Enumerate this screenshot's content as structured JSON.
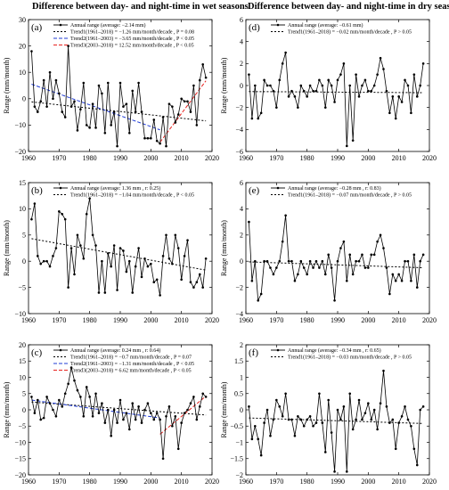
{
  "headers": {
    "left": "Difference between day- and night-time in wet seasons",
    "right": "Difference between day- and night-time in dry seasons"
  },
  "colors": {
    "series": "#000000",
    "trend1": "#000000",
    "trend2": "#1f3bd6",
    "trend3": "#e8231f"
  },
  "chart_data": [
    {
      "id": "a",
      "type": "line",
      "panel_label": "(a)",
      "ylabel": "Range (mm/month)",
      "xlim": [
        1960,
        2020
      ],
      "ylim": [
        -20,
        30
      ],
      "xticks": [
        1960,
        1970,
        1980,
        1990,
        2000,
        2010,
        2020
      ],
      "yticks": [
        -20,
        -10,
        0,
        10,
        20,
        30
      ],
      "legend": [
        {
          "text": "Annual range (average: −2.14 mm)",
          "style": "series"
        },
        {
          "text": "Trend1(1961–2018) = −1.26 mm/month/decade , P = 0.08",
          "style": "trend1"
        },
        {
          "text": "Trend2(1961–2003) = −3.65 mm/month/decade , P < 0.05",
          "style": "trend2"
        },
        {
          "text": "Trend3(2003–2018) = 12.52 mm/month/decade , P < 0.05",
          "style": "trend3"
        }
      ],
      "years": [
        1961,
        1962,
        1963,
        1964,
        1965,
        1966,
        1967,
        1968,
        1969,
        1970,
        1971,
        1972,
        1973,
        1974,
        1975,
        1976,
        1977,
        1978,
        1979,
        1980,
        1981,
        1982,
        1983,
        1984,
        1985,
        1986,
        1987,
        1988,
        1989,
        1990,
        1991,
        1992,
        1993,
        1994,
        1995,
        1996,
        1997,
        1998,
        1999,
        2000,
        2001,
        2002,
        2003,
        2004,
        2005,
        2006,
        2007,
        2008,
        2009,
        2010,
        2011,
        2012,
        2013,
        2014,
        2015,
        2016,
        2017,
        2018
      ],
      "values": [
        18,
        -3,
        -5,
        -1,
        7,
        -3,
        10,
        0,
        7,
        2,
        -5,
        -7,
        20,
        -3,
        -1,
        -12,
        -4,
        6,
        -10,
        -11,
        -2,
        -11,
        5,
        2,
        -13,
        6,
        -10,
        -5,
        -18,
        6,
        -3,
        -2,
        -13,
        3,
        -5,
        6,
        -5,
        -15,
        -15,
        -15,
        -8,
        -16,
        -17,
        -7,
        -18,
        -2,
        -3,
        -9,
        -6,
        0,
        -1,
        -1,
        -5,
        5,
        -10,
        7,
        13,
        8
      ],
      "trends": [
        {
          "style": "trend1",
          "x": [
            1961,
            2018
          ],
          "y": [
            -1.2,
            -8.4
          ]
        },
        {
          "style": "trend2",
          "x": [
            1961,
            2003
          ],
          "y": [
            5.5,
            -11.8
          ]
        },
        {
          "style": "trend3",
          "x": [
            2003,
            2018
          ],
          "y": [
            -16.5,
            6.8
          ]
        }
      ]
    },
    {
      "id": "b",
      "type": "line",
      "panel_label": "(b)",
      "ylabel": "Range (mm/month)",
      "xlim": [
        1960,
        2020
      ],
      "ylim": [
        -10,
        15
      ],
      "xticks": [
        1960,
        1970,
        1980,
        1990,
        2000,
        2010,
        2020
      ],
      "yticks": [
        -10,
        -5,
        0,
        5,
        10,
        15
      ],
      "legend": [
        {
          "text": "Annual range (average: 1.36 mm , r: 0.25)",
          "style": "series"
        },
        {
          "text": "Trend1(1961–2018) = −1.04 mm/month/decade , P < 0.05",
          "style": "trend1"
        }
      ],
      "years": [
        1961,
        1962,
        1963,
        1964,
        1965,
        1966,
        1967,
        1968,
        1969,
        1970,
        1971,
        1972,
        1973,
        1974,
        1975,
        1976,
        1977,
        1978,
        1979,
        1980,
        1981,
        1982,
        1983,
        1984,
        1985,
        1986,
        1987,
        1988,
        1989,
        1990,
        1991,
        1992,
        1993,
        1994,
        1995,
        1996,
        1997,
        1998,
        1999,
        2000,
        2001,
        2002,
        2003,
        2004,
        2005,
        2006,
        2007,
        2008,
        2009,
        2010,
        2011,
        2012,
        2013,
        2014,
        2015,
        2016,
        2017,
        2018
      ],
      "values": [
        8,
        11,
        1,
        -0.5,
        0,
        0,
        -1,
        1,
        2.5,
        9.5,
        9,
        8,
        -5,
        2.5,
        -2.5,
        5,
        3,
        0.5,
        9,
        12,
        5,
        3,
        -6,
        0,
        -6,
        1.5,
        -1,
        3,
        -5.5,
        2.5,
        2,
        -2,
        0,
        -6,
        -1,
        2.5,
        -3,
        0.5,
        -1,
        -0.5,
        -4,
        -3.5,
        -6.5,
        1,
        5,
        0.5,
        -0.5,
        5,
        2.5,
        -3.5,
        1,
        4,
        -4,
        -5,
        -4,
        -2.5,
        -5,
        0.5
      ],
      "trends": [
        {
          "style": "trend1",
          "x": [
            1961,
            2018
          ],
          "y": [
            4.3,
            -1.7
          ]
        }
      ]
    },
    {
      "id": "c",
      "type": "line",
      "panel_label": "(c)",
      "ylabel": "Range (mm/month)",
      "xlim": [
        1960,
        2020
      ],
      "ylim": [
        -20,
        20
      ],
      "xticks": [
        1960,
        1970,
        1980,
        1990,
        2000,
        2010,
        2020
      ],
      "yticks": [
        -20,
        -15,
        -10,
        -5,
        0,
        5,
        10,
        15,
        20
      ],
      "legend": [
        {
          "text": "Annual range (average: 0.24 mm , r: 0.64)",
          "style": "series"
        },
        {
          "text": "Trend1(1961–2018) = −0.7 mm/month/decade , P = 0.07",
          "style": "trend1"
        },
        {
          "text": "Trend2(1961–2003) = −1.31 mm/month/decade , P < 0.05",
          "style": "trend2"
        },
        {
          "text": "Trend3(2003–2018) = 6.62 mm/month/decade , P < 0.05",
          "style": "trend3"
        }
      ],
      "years": [
        1961,
        1962,
        1963,
        1964,
        1965,
        1966,
        1967,
        1968,
        1969,
        1970,
        1971,
        1972,
        1973,
        1974,
        1975,
        1976,
        1977,
        1978,
        1979,
        1980,
        1981,
        1982,
        1983,
        1984,
        1985,
        1986,
        1987,
        1988,
        1989,
        1990,
        1991,
        1992,
        1993,
        1994,
        1995,
        1996,
        1997,
        1998,
        1999,
        2000,
        2001,
        2002,
        2003,
        2004,
        2005,
        2006,
        2007,
        2008,
        2009,
        2010,
        2011,
        2012,
        2013,
        2014,
        2015,
        2016,
        2017,
        2018
      ],
      "values": [
        4,
        -1,
        3,
        -3,
        -2.5,
        4,
        2,
        0,
        -2,
        3,
        1,
        5,
        8,
        13,
        9,
        6,
        4,
        -2,
        7,
        4,
        -2,
        5,
        -1,
        2,
        -4,
        0,
        -8,
        0,
        -4,
        3,
        -3,
        -1,
        -6,
        2,
        -3,
        1,
        -4,
        0,
        2,
        -1,
        -3,
        -1,
        -3,
        -15,
        -2,
        1,
        -5,
        -2,
        -12,
        -4,
        -1,
        0,
        2,
        4,
        -3,
        1,
        5,
        4
      ],
      "trends": [
        {
          "style": "trend1",
          "x": [
            1961,
            2018
          ],
          "y": [
            2.4,
            -1.6
          ]
        },
        {
          "style": "trend2",
          "x": [
            1961,
            2003
          ],
          "y": [
            3.0,
            -2.5
          ]
        },
        {
          "style": "trend3",
          "x": [
            2003,
            2018
          ],
          "y": [
            -7.5,
            4.2
          ]
        }
      ]
    },
    {
      "id": "d",
      "type": "line",
      "panel_label": "(d)",
      "ylabel": "Range (mm/month)",
      "xlim": [
        1960,
        2020
      ],
      "ylim": [
        -6,
        6
      ],
      "xticks": [
        1960,
        1970,
        1980,
        1990,
        2000,
        2010,
        2020
      ],
      "yticks": [
        -6,
        -4,
        -2,
        0,
        2,
        4,
        6
      ],
      "legend": [
        {
          "text": "Annual range (average: −0.61 mm)",
          "style": "series"
        },
        {
          "text": "Trend1(1961–2018) = −0.02 mm/month/decade , P > 0.05",
          "style": "trend1"
        }
      ],
      "years": [
        1961,
        1962,
        1963,
        1964,
        1965,
        1966,
        1967,
        1968,
        1969,
        1970,
        1971,
        1972,
        1973,
        1974,
        1975,
        1976,
        1977,
        1978,
        1979,
        1980,
        1981,
        1982,
        1983,
        1984,
        1985,
        1986,
        1987,
        1988,
        1989,
        1990,
        1991,
        1992,
        1993,
        1994,
        1995,
        1996,
        1997,
        1998,
        1999,
        2000,
        2001,
        2002,
        2003,
        2004,
        2005,
        2006,
        2007,
        2008,
        2009,
        2010,
        2011,
        2012,
        2013,
        2014,
        2015,
        2016,
        2017,
        2018
      ],
      "values": [
        1,
        -3,
        0,
        -3,
        -2.5,
        0.5,
        0,
        0,
        -0.5,
        -2,
        0.5,
        2,
        3,
        -1,
        -0.5,
        -1,
        -2,
        0,
        -0.5,
        -1,
        0,
        -0.5,
        -0.5,
        0.5,
        0,
        -2,
        0.5,
        0,
        -1.5,
        0.5,
        1,
        2,
        -5.5,
        0,
        -5,
        1,
        -1,
        0,
        0.5,
        -0.5,
        -0.5,
        0,
        1,
        2.5,
        1.5,
        -0.5,
        -2.5,
        -1,
        -3,
        -1,
        -1.5,
        0.5,
        0,
        -2.5,
        1,
        -1,
        0,
        2
      ],
      "trends": [
        {
          "style": "trend1",
          "x": [
            1961,
            2018
          ],
          "y": [
            -0.55,
            -0.65
          ]
        }
      ]
    },
    {
      "id": "e",
      "type": "line",
      "panel_label": "(e)",
      "ylabel": "Range (mm/month)",
      "xlim": [
        1960,
        2020
      ],
      "ylim": [
        -4,
        6
      ],
      "xticks": [
        1960,
        1970,
        1980,
        1990,
        2000,
        2010,
        2020
      ],
      "yticks": [
        -4,
        -2,
        0,
        2,
        4,
        6
      ],
      "legend": [
        {
          "text": "Annual range (average: −0.28 mm , r: 0.83)",
          "style": "series"
        },
        {
          "text": "Trend1(1961–2018) = −0.07 mm/month/decade , P > 0.05",
          "style": "trend1"
        }
      ],
      "years": [
        1961,
        1962,
        1963,
        1964,
        1965,
        1966,
        1967,
        1968,
        1969,
        1970,
        1971,
        1972,
        1973,
        1974,
        1975,
        1976,
        1977,
        1978,
        1979,
        1980,
        1981,
        1982,
        1983,
        1984,
        1985,
        1986,
        1987,
        1988,
        1989,
        1990,
        1991,
        1992,
        1993,
        1994,
        1995,
        1996,
        1997,
        1998,
        1999,
        2000,
        2001,
        2002,
        2003,
        2004,
        2005,
        2006,
        2007,
        2008,
        2009,
        2010,
        2011,
        2012,
        2013,
        2014,
        2015,
        2016,
        2017,
        2018
      ],
      "values": [
        3,
        -1.5,
        0,
        -3,
        -2.5,
        0,
        0,
        -0.5,
        -1,
        -0.5,
        0,
        1.5,
        3.5,
        0,
        0,
        -1.5,
        -1,
        0,
        -0.5,
        -1,
        0,
        -0.5,
        0,
        -0.5,
        0,
        -1,
        0.5,
        -0.5,
        -3,
        0,
        1,
        1.5,
        -1.5,
        0.5,
        -1,
        0,
        0,
        0.5,
        -0.5,
        -0.5,
        0.5,
        0.5,
        1.5,
        2,
        1,
        -0.5,
        -2.5,
        -1,
        -1.5,
        -1,
        -1.5,
        0,
        0,
        -1.5,
        0.5,
        -2,
        0,
        0.5
      ],
      "trends": [
        {
          "style": "trend1",
          "x": [
            1961,
            2018
          ],
          "y": [
            -0.05,
            -0.5
          ]
        }
      ]
    },
    {
      "id": "f",
      "type": "line",
      "panel_label": "(f)",
      "ylabel": "Range (mm/month)",
      "xlim": [
        1960,
        2020
      ],
      "ylim": [
        -2,
        2
      ],
      "xticks": [
        1960,
        1970,
        1980,
        1990,
        2000,
        2010,
        2020
      ],
      "yticks": [
        -2,
        -1.5,
        -1,
        -0.5,
        0,
        0.5,
        1,
        1.5,
        2
      ],
      "legend": [
        {
          "text": "Annual range (average: −0.34 mm , r: 0.65)",
          "style": "series"
        },
        {
          "text": "Trend1(1961–2018) = −0.03 mm/month/decade , P > 0.05",
          "style": "trend1"
        }
      ],
      "years": [
        1961,
        1962,
        1963,
        1964,
        1965,
        1966,
        1967,
        1968,
        1969,
        1970,
        1971,
        1972,
        1973,
        1974,
        1975,
        1976,
        1977,
        1978,
        1979,
        1980,
        1981,
        1982,
        1983,
        1984,
        1985,
        1986,
        1987,
        1988,
        1989,
        1990,
        1991,
        1992,
        1993,
        1994,
        1995,
        1996,
        1997,
        1998,
        1999,
        2000,
        2001,
        2002,
        2003,
        2004,
        2005,
        2006,
        2007,
        2008,
        2009,
        2010,
        2011,
        2012,
        2013,
        2014,
        2015,
        2016,
        2017,
        2018
      ],
      "values": [
        0.1,
        -0.9,
        -0.5,
        -0.9,
        -1.4,
        -0.4,
        0,
        -0.8,
        -0.3,
        0.3,
        0.1,
        -0.2,
        0.5,
        -0.3,
        -0.3,
        -0.8,
        -0.2,
        -0.3,
        -0.5,
        -0.3,
        -0.2,
        -0.5,
        -0.4,
        0.5,
        -0.4,
        -1.3,
        0.3,
        -0.7,
        -1.9,
        0,
        -0.3,
        0.1,
        -1.9,
        0.5,
        -0.6,
        -0.3,
        0.3,
        -0.3,
        -0.1,
        0.2,
        -0.3,
        0,
        -0.6,
        0.2,
        1.2,
        0.1,
        -0.4,
        -0.3,
        -1.2,
        -0.4,
        -0.2,
        0.1,
        -0.3,
        -0.5,
        -1.2,
        -1.7,
        0,
        0.1
      ],
      "trends": [
        {
          "style": "trend1",
          "x": [
            1961,
            2018
          ],
          "y": [
            -0.25,
            -0.42
          ]
        }
      ]
    }
  ]
}
